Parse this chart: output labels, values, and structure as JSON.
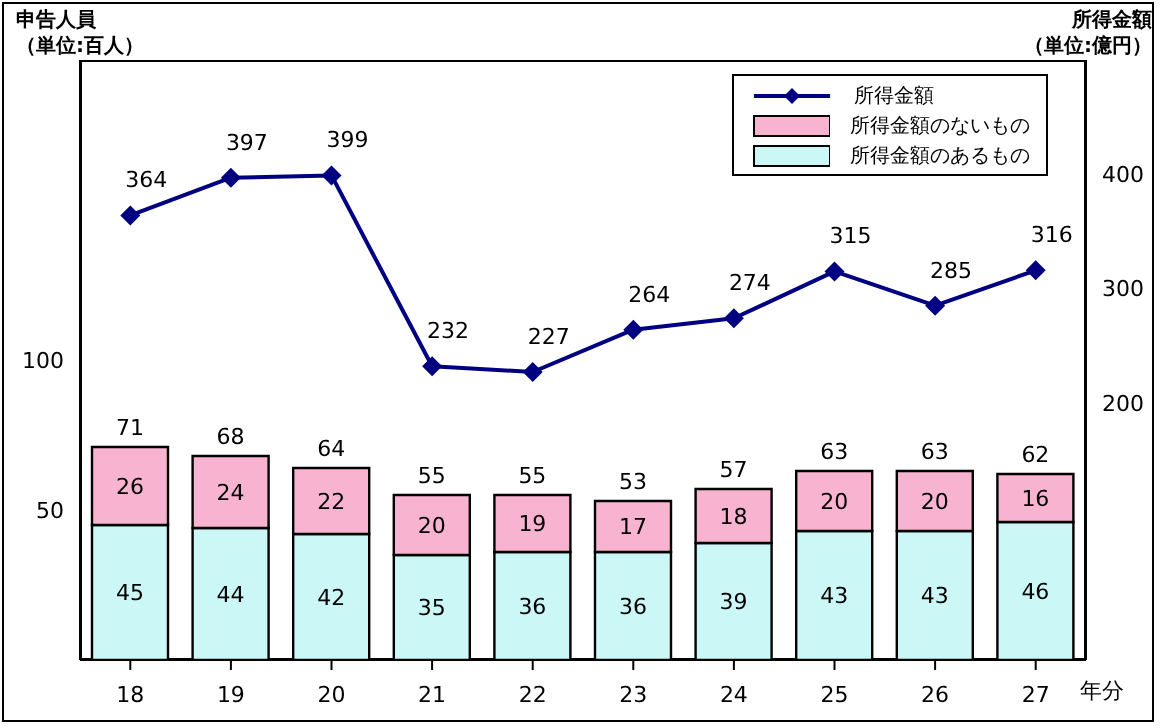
{
  "chart_data": {
    "type": "bar",
    "stacked": true,
    "ylabel": "申告人員（単位:百人）",
    "y2label": "所得金額（単位:億円）",
    "xlabel": "年分",
    "categories": [
      "18",
      "19",
      "20",
      "21",
      "22",
      "23",
      "24",
      "25",
      "26",
      "27"
    ],
    "series": [
      {
        "name": "所得金額のあるもの",
        "color": "#ccf7f7",
        "values": [
          45,
          44,
          42,
          35,
          36,
          36,
          39,
          43,
          43,
          46
        ]
      },
      {
        "name": "所得金額のないもの",
        "color": "#f7b3d0",
        "values": [
          26,
          24,
          22,
          20,
          19,
          17,
          18,
          20,
          20,
          16
        ]
      },
      {
        "name": "所得金額",
        "type": "line",
        "axis": "y2",
        "color": "#000080",
        "values": [
          364,
          397,
          399,
          232,
          227,
          264,
          274,
          315,
          285,
          316
        ]
      }
    ],
    "totals": [
      "71",
      "68",
      "64",
      "55",
      "55",
      "53",
      "57",
      "63",
      "63",
      "62"
    ],
    "ylim": [
      0,
      200
    ],
    "yticks": [
      50,
      100
    ],
    "y2lim": [
      -25,
      500
    ],
    "y2ticks": [
      200,
      300,
      400
    ],
    "data_labels": true,
    "legend": "top right",
    "marker": "diamond",
    "grid": false
  }
}
